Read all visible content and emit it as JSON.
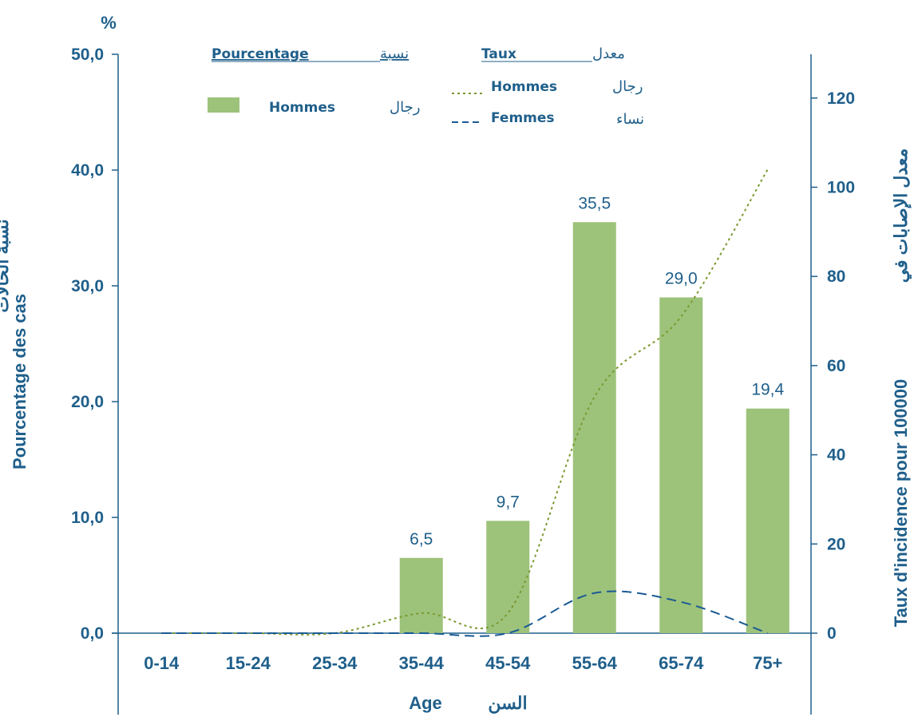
{
  "chart_data": {
    "type": "bar",
    "xlabel_fr": "Age",
    "xlabel_ar": "السن",
    "categories": [
      "0-14",
      "15-24",
      "25-34",
      "35-44",
      "45-54",
      "55-64",
      "65-74",
      "75+"
    ],
    "left_axis": {
      "unit": "%",
      "label_fr": "Pourcentage des cas",
      "label_ar": "نسبة الحالات",
      "ylim": [
        0,
        50
      ],
      "ticks": [
        "0,0",
        "10,0",
        "20,0",
        "30,0",
        "40,0",
        "50,0"
      ]
    },
    "right_axis": {
      "label_fr": "Taux d'incidence pour 100000",
      "label_ar": "معدل الإصابات في",
      "ylim": [
        0,
        130
      ],
      "ticks": [
        "0",
        "20",
        "40",
        "60",
        "80",
        "100",
        "120"
      ]
    },
    "legend": {
      "pct_header_fr": "Pourcentage",
      "pct_header_ar": "نسبة",
      "rate_header_fr": "Taux",
      "rate_header_ar": "معدل",
      "bar_fr": "Hommes",
      "bar_ar": "رجال",
      "men_fr": "Hommes",
      "men_ar": "رجال",
      "women_fr": "Femmes",
      "women_ar": "نساء"
    },
    "series": [
      {
        "name": "Hommes",
        "kind": "bar",
        "axis": "left",
        "values": [
          null,
          null,
          null,
          6.5,
          9.7,
          35.5,
          29.0,
          19.4
        ],
        "labels": [
          "",
          "",
          "",
          "6,5",
          "9,7",
          "35,5",
          "29,0",
          "19,4"
        ]
      },
      {
        "name": "Hommes",
        "kind": "line-dotted",
        "axis": "right",
        "values": [
          0,
          0,
          0,
          4.5,
          4.5,
          53,
          71,
          104
        ]
      },
      {
        "name": "Femmes",
        "kind": "line-dashed",
        "axis": "right",
        "values": [
          0,
          0,
          0,
          0,
          0,
          9,
          7,
          0
        ]
      }
    ],
    "colors": {
      "bar": "#9dc27a",
      "men_line": "#7a9a2e",
      "women_line": "#1a5a94",
      "text": "#1f5f8b",
      "axis": "#1f5f8b"
    }
  }
}
